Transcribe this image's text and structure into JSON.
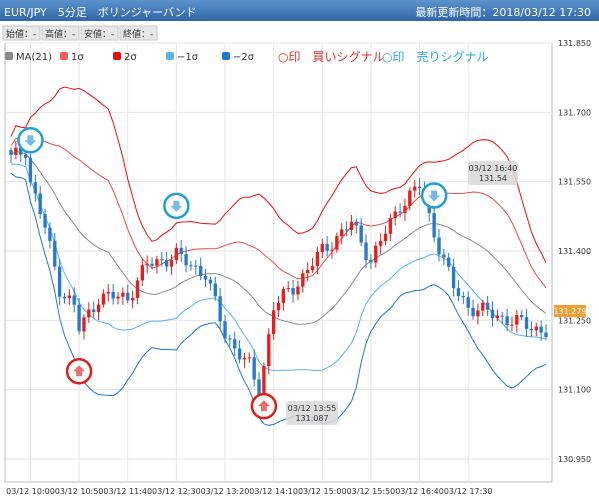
{
  "header": {
    "title": "EUR/JPY　5分足　ボリンジャーバンド",
    "updated": "最新更新時間：2018/03/12 17:30"
  },
  "ohlc_bar": {
    "items": [
      {
        "label": "始値：",
        "value": "-"
      },
      {
        "label": "高値：",
        "value": "-"
      },
      {
        "label": "安値：",
        "value": "-"
      },
      {
        "label": "終値：",
        "value": "-"
      }
    ]
  },
  "colors": {
    "up": "#e32020",
    "down": "#2a78c8",
    "ma": "#8a8a8a",
    "sigma1_up": "#e05050",
    "sigma2_up": "#e01010",
    "sigma1_dn": "#5ab4e8",
    "sigma2_dn": "#1e78c8",
    "buy_marker": "#d82020",
    "sell_marker": "#1ea0d8",
    "price_box": "#f0a030"
  },
  "legend": [
    {
      "label": "MA(21)",
      "color": "#8a8a8a"
    },
    {
      "label": "1σ",
      "color": "#ee6060"
    },
    {
      "label": "2σ",
      "color": "#e01010"
    },
    {
      "label": "−1σ",
      "color": "#5ab4e8"
    },
    {
      "label": "−2σ",
      "color": "#1e78c8"
    }
  ],
  "signals": {
    "buy_label": "○印　買いシグナル",
    "sell_label": "○印　売りシグナル"
  },
  "current_price": "131.279",
  "chart_data": {
    "type": "candlestick",
    "title": "EUR/JPY　5分足　ボリンジャーバンド",
    "x_ticks": [
      "03/12 10:00",
      "03/12 10:50",
      "03/12 11:40",
      "03/12 12:30",
      "03/12 13:20",
      "03/12 14:10",
      "03/12 15:00",
      "03/12 15:50",
      "03/12 16:40",
      "03/12 17:30"
    ],
    "y_ticks": [
      "131.850",
      "131.700",
      "131.550",
      "131.400",
      "131.250",
      "131.100",
      "130.950"
    ],
    "ylim": [
      130.95,
      131.85
    ],
    "x_start": "2018-03-12 09:40",
    "interval_minutes": 5,
    "candles_anchor": [
      {
        "time": "09:40",
        "close": 131.6
      },
      {
        "time": "09:55",
        "close": 131.62
      },
      {
        "time": "10:00",
        "close": 131.55
      },
      {
        "time": "10:15",
        "close": 131.45
      },
      {
        "time": "10:30",
        "close": 131.32
      },
      {
        "time": "10:45",
        "close": 131.28
      },
      {
        "time": "10:50",
        "close": 131.23
      },
      {
        "time": "11:10",
        "close": 131.3
      },
      {
        "time": "11:40",
        "close": 131.3
      },
      {
        "time": "12:00",
        "close": 131.37
      },
      {
        "time": "12:30",
        "close": 131.39
      },
      {
        "time": "13:00",
        "close": 131.35
      },
      {
        "time": "13:20",
        "close": 131.22
      },
      {
        "time": "13:45",
        "close": 131.15
      },
      {
        "time": "13:55",
        "close": 131.09
      },
      {
        "time": "14:10",
        "close": 131.28
      },
      {
        "time": "14:30",
        "close": 131.32
      },
      {
        "time": "15:00",
        "close": 131.4
      },
      {
        "time": "15:30",
        "close": 131.46
      },
      {
        "time": "15:50",
        "close": 131.38
      },
      {
        "time": "16:20",
        "close": 131.5
      },
      {
        "time": "16:40",
        "close": 131.54
      },
      {
        "time": "16:55",
        "close": 131.44
      },
      {
        "time": "17:15",
        "close": 131.32
      },
      {
        "time": "17:30",
        "close": 131.28
      }
    ],
    "annotations": [
      {
        "text": "03/12 13:55",
        "sub": "131.087",
        "type": "buy"
      },
      {
        "text": "03/12 16:40",
        "sub": "131.54",
        "type": "sell"
      }
    ],
    "signal_markers": [
      {
        "type": "sell",
        "time": "10:00"
      },
      {
        "type": "buy",
        "time": "10:50"
      },
      {
        "type": "sell",
        "time": "12:30"
      },
      {
        "type": "buy",
        "time": "14:00"
      },
      {
        "type": "sell",
        "time": "16:55"
      }
    ]
  }
}
